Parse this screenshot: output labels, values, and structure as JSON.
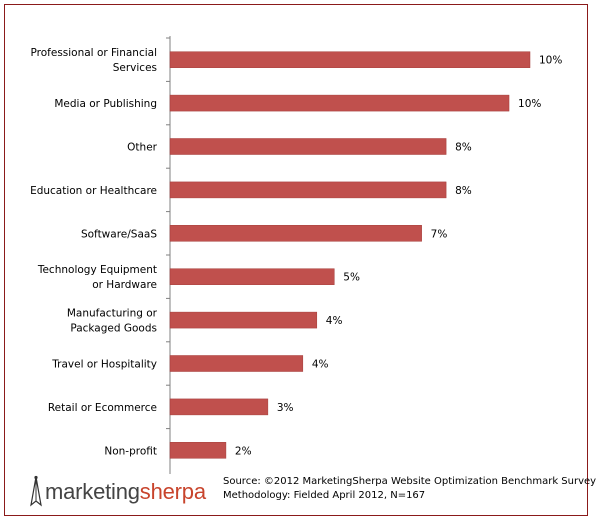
{
  "chart_data": {
    "type": "bar",
    "orientation": "horizontal",
    "categories": [
      "Professional or Financial Services",
      "Media or Publishing",
      "Other",
      "Education or Healthcare",
      "Software/SaaS",
      "Technology Equipment or Hardware",
      "Manufacturing or Packaged Goods",
      "Travel or Hospitality",
      "Retail or Ecommerce",
      "Non-profit"
    ],
    "category_lines": [
      [
        "Professional or Financial",
        "Services"
      ],
      [
        "Media or Publishing"
      ],
      [
        "Other"
      ],
      [
        "Education or Healthcare"
      ],
      [
        "Software/SaaS"
      ],
      [
        "Technology Equipment",
        "or Hardware"
      ],
      [
        "Manufacturing or",
        "Packaged Goods"
      ],
      [
        "Travel or Hospitality"
      ],
      [
        "Retail or Ecommerce"
      ],
      [
        "Non-profit"
      ]
    ],
    "values": [
      10.3,
      9.7,
      7.9,
      7.9,
      7.2,
      4.7,
      4.2,
      3.8,
      2.8,
      1.6
    ],
    "value_labels": [
      "10%",
      "10%",
      "8%",
      "8%",
      "7%",
      "5%",
      "4%",
      "4%",
      "3%",
      "2%"
    ],
    "xlim": [
      0,
      10.3
    ],
    "grid": false,
    "legend": "none",
    "bar_color": "#c0504d"
  },
  "footer": {
    "logo_part1": "marketing",
    "logo_part2": "sherpa",
    "source_line1": "Source: ©2012 MarketingSherpa Website Optimization Benchmark Survey",
    "source_line2": "Methodology: Fielded April 2012, N=167"
  },
  "colors": {
    "border": "#8b1a1a",
    "logo_gray": "#444444",
    "logo_red": "#c8442c"
  }
}
